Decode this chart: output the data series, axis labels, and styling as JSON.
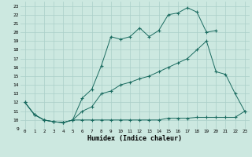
{
  "xlabel": "Humidex (Indice chaleur)",
  "bg_color": "#cce8e0",
  "grid_color": "#aacfc8",
  "line_color": "#1a6b60",
  "xlim": [
    -0.5,
    23.5
  ],
  "ylim": [
    9,
    23.5
  ],
  "x_ticks": [
    0,
    1,
    2,
    3,
    4,
    5,
    6,
    7,
    8,
    9,
    10,
    11,
    12,
    13,
    14,
    15,
    16,
    17,
    18,
    19,
    20,
    21,
    22,
    23
  ],
  "y_ticks": [
    9,
    10,
    11,
    12,
    13,
    14,
    15,
    16,
    17,
    18,
    19,
    20,
    21,
    22,
    23
  ],
  "line1_x": [
    0,
    1,
    2,
    3,
    4,
    5,
    6,
    7,
    8,
    9,
    10,
    11,
    12,
    13,
    14,
    15,
    16,
    17,
    18,
    19,
    20
  ],
  "line1_y": [
    12.0,
    10.6,
    10.0,
    9.8,
    9.7,
    10.0,
    12.5,
    13.5,
    16.2,
    19.5,
    19.2,
    19.5,
    20.5,
    19.5,
    20.2,
    22.0,
    22.2,
    22.8,
    22.3,
    20.0,
    20.2
  ],
  "line2_x": [
    0,
    1,
    2,
    3,
    4,
    5,
    6,
    7,
    8,
    9,
    10,
    11,
    12,
    13,
    14,
    15,
    16,
    17,
    18,
    19,
    20,
    21,
    22,
    23
  ],
  "line2_y": [
    12.0,
    10.6,
    10.0,
    9.8,
    9.7,
    10.0,
    11.0,
    11.5,
    13.0,
    13.3,
    14.0,
    14.3,
    14.7,
    15.0,
    15.5,
    16.0,
    16.5,
    17.0,
    18.0,
    19.0,
    15.5,
    15.2,
    13.0,
    11.0
  ],
  "line3_x": [
    0,
    1,
    2,
    3,
    4,
    5,
    6,
    7,
    8,
    9,
    10,
    11,
    12,
    13,
    14,
    15,
    16,
    17,
    18,
    19,
    20,
    21,
    22,
    23
  ],
  "line3_y": [
    12.0,
    10.6,
    10.0,
    9.8,
    9.7,
    10.0,
    10.0,
    10.0,
    10.0,
    10.0,
    10.0,
    10.0,
    10.0,
    10.0,
    10.0,
    10.2,
    10.2,
    10.2,
    10.3,
    10.3,
    10.3,
    10.3,
    10.3,
    11.0
  ]
}
